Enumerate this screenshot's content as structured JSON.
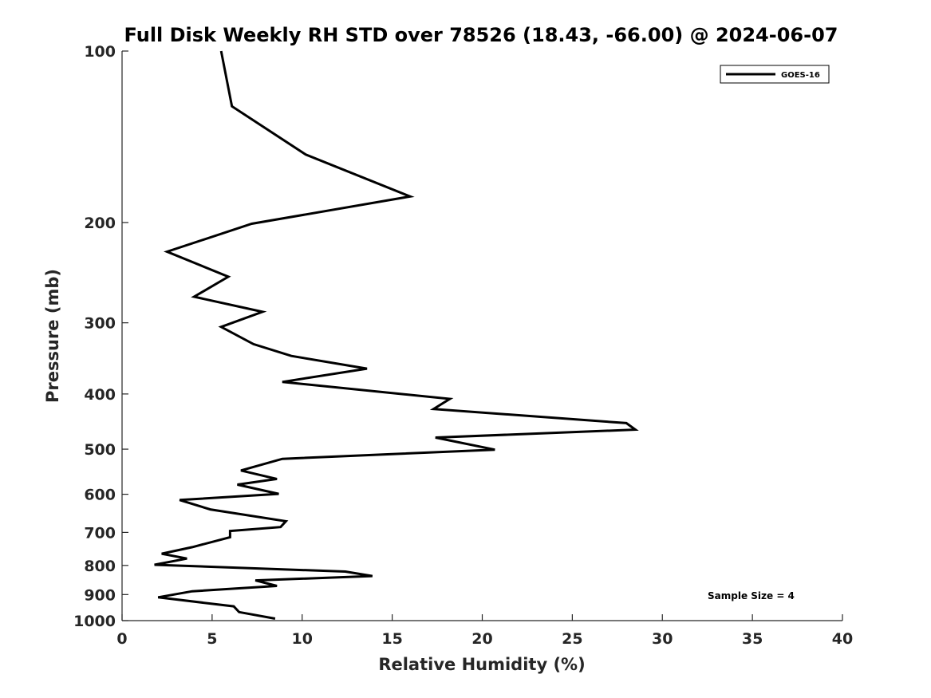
{
  "chart_data": {
    "type": "line",
    "title": "Full Disk Weekly RH STD over 78526 (18.43, -66.00) @ 2024-06-07",
    "xlabel": "Relative Humidity (%)",
    "ylabel": "Pressure (mb)",
    "xlim": [
      0,
      40
    ],
    "ylim": [
      100,
      1000
    ],
    "y_scale": "log",
    "y_reversed": true,
    "grid": false,
    "legend_position": "top-right",
    "x_ticks": [
      0,
      5,
      10,
      15,
      20,
      25,
      30,
      35,
      40
    ],
    "x_tick_labels": [
      "0",
      "5",
      "10",
      "15",
      "20",
      "25",
      "30",
      "35",
      "40"
    ],
    "y_ticks": [
      100,
      200,
      300,
      400,
      500,
      600,
      700,
      800,
      900,
      1000
    ],
    "y_tick_labels": [
      "100",
      "200",
      "300",
      "400",
      "500",
      "600",
      "700",
      "800",
      "900",
      "1000"
    ],
    "annotation": "Sample Size = 4",
    "series": [
      {
        "name": "GOES-16",
        "color": "#000000",
        "points": [
          [
            5.5,
            100
          ],
          [
            6.1,
            125
          ],
          [
            10.2,
            152
          ],
          [
            16.0,
            180
          ],
          [
            7.2,
            201
          ],
          [
            2.5,
            225
          ],
          [
            5.9,
            249
          ],
          [
            4.0,
            270
          ],
          [
            7.8,
            287
          ],
          [
            5.5,
            305
          ],
          [
            7.3,
            327
          ],
          [
            9.4,
            343
          ],
          [
            13.6,
            361
          ],
          [
            8.9,
            381
          ],
          [
            18.2,
            408
          ],
          [
            17.3,
            425
          ],
          [
            28.0,
            450
          ],
          [
            28.5,
            462
          ],
          [
            17.4,
            477
          ],
          [
            20.7,
            501
          ],
          [
            8.9,
            520
          ],
          [
            6.6,
            545
          ],
          [
            8.6,
            564
          ],
          [
            6.4,
            577
          ],
          [
            8.7,
            599
          ],
          [
            3.2,
            614
          ],
          [
            4.9,
            638
          ],
          [
            9.1,
            669
          ],
          [
            8.8,
            685
          ],
          [
            6.0,
            696
          ],
          [
            6.0,
            714
          ],
          [
            3.9,
            743
          ],
          [
            2.2,
            763
          ],
          [
            3.6,
            778
          ],
          [
            1.8,
            798
          ],
          [
            12.4,
            820
          ],
          [
            13.9,
            835
          ],
          [
            7.4,
            850
          ],
          [
            8.6,
            869
          ],
          [
            3.9,
            888
          ],
          [
            2.0,
            910
          ],
          [
            6.2,
            944
          ],
          [
            6.5,
            966
          ],
          [
            8.5,
            992
          ]
        ]
      }
    ]
  }
}
